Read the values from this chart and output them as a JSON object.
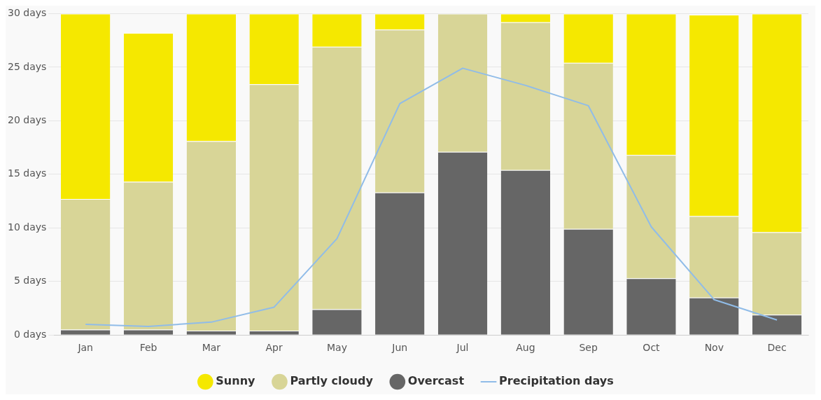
{
  "chart_data": {
    "type": "bar",
    "stacked": true,
    "categories": [
      "Jan",
      "Feb",
      "Mar",
      "Apr",
      "May",
      "Jun",
      "Jul",
      "Aug",
      "Sep",
      "Oct",
      "Nov",
      "Dec"
    ],
    "series": [
      {
        "name": "Overcast",
        "color": "#666666",
        "values": [
          0.5,
          0.5,
          0.4,
          0.4,
          2.4,
          13.3,
          17.1,
          15.4,
          9.9,
          5.3,
          3.5,
          1.9
        ]
      },
      {
        "name": "Partly cloudy",
        "color": "#d8d597",
        "values": [
          12.2,
          13.8,
          17.7,
          23.0,
          24.5,
          15.2,
          12.9,
          13.8,
          15.5,
          11.5,
          7.6,
          7.7
        ]
      },
      {
        "name": "Sunny",
        "color": "#f5e800",
        "values": [
          17.3,
          13.9,
          11.9,
          6.6,
          3.1,
          1.5,
          0,
          0.8,
          4.6,
          13.2,
          18.8,
          20.4
        ]
      },
      {
        "name": "Precipitation days",
        "color": "#90bce8",
        "type": "line",
        "marker": "none",
        "values": [
          1.0,
          0.8,
          1.2,
          2.6,
          9.0,
          21.6,
          24.9,
          23.3,
          21.4,
          10.1,
          3.3,
          1.4
        ]
      }
    ],
    "ylim": [
      0,
      30
    ],
    "yticks": [
      {
        "value": 0,
        "label": "0 days"
      },
      {
        "value": 5,
        "label": "5 days"
      },
      {
        "value": 10,
        "label": "10 days"
      },
      {
        "value": 15,
        "label": "15 days"
      },
      {
        "value": 20,
        "label": "20 days"
      },
      {
        "value": 25,
        "label": "25 days"
      },
      {
        "value": 30,
        "label": "30 days"
      }
    ],
    "grid": "y",
    "legend": "bottom"
  }
}
